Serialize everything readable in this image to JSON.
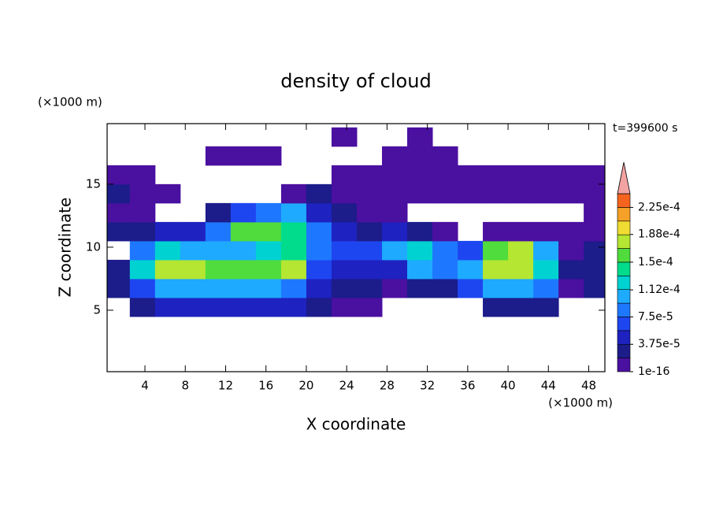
{
  "chart_data": {
    "type": "contour",
    "title": "density of cloud",
    "xlabel": "X coordinate",
    "ylabel": "Z coordinate",
    "x_unit": "(×1000 m)",
    "y_unit": "(×1000 m)",
    "annotation": "t=399600 s",
    "xlim": [
      0.25,
      49.6
    ],
    "ylim": [
      0.125,
      19.8
    ],
    "xticks": [
      4,
      8,
      12,
      16,
      20,
      24,
      28,
      32,
      36,
      40,
      44,
      48
    ],
    "yticks": [
      5,
      10,
      15
    ],
    "x": [
      1.25,
      3.75,
      6.25,
      8.75,
      11.25,
      13.75,
      16.25,
      18.75,
      21.25,
      23.75,
      26.25,
      28.75,
      31.25,
      33.75,
      36.25,
      38.75,
      41.25,
      43.75,
      46.25,
      48.75
    ],
    "y": [
      5.25,
      6.75,
      8.25,
      9.75,
      11.25,
      12.75,
      14.25,
      15.75,
      17.25,
      18.75
    ],
    "z": [
      [
        null,
        3e-05,
        5e-05,
        5e-05,
        5e-05,
        5e-05,
        5e-05,
        4e-05,
        2e-05,
        1e-05,
        1e-05,
        null,
        null,
        null,
        null,
        3e-05,
        3e-05,
        2e-05,
        null,
        null
      ],
      [
        2e-05,
        6e-05,
        0.00011,
        0.00011,
        0.0001,
        0.0001,
        0.0001,
        9e-05,
        5e-05,
        3e-05,
        2e-05,
        1e-05,
        2e-05,
        2e-05,
        6e-05,
        0.00011,
        0.00011,
        8e-05,
        1e-05,
        2e-05
      ],
      [
        3e-05,
        0.00013,
        0.00017,
        0.000175,
        0.00016,
        0.00015,
        0.00016,
        0.00017,
        7e-05,
        5e-05,
        4e-05,
        5e-05,
        0.00011,
        9e-05,
        0.00011,
        0.00017,
        0.00017,
        0.00012,
        2e-05,
        3e-05
      ],
      [
        null,
        8e-05,
        0.00012,
        0.00011,
        0.0001,
        0.00011,
        0.00013,
        0.00014,
        9e-05,
        7e-05,
        6e-05,
        0.0001,
        0.00013,
        8e-05,
        6e-05,
        0.00016,
        0.00017,
        0.00011,
        1e-05,
        2e-05
      ],
      [
        2e-05,
        3e-05,
        4e-05,
        5e-05,
        8e-05,
        0.00015,
        0.00016,
        0.00014,
        8e-05,
        5e-05,
        2e-05,
        5e-05,
        3e-05,
        1e-05,
        null,
        1e-05,
        1e-05,
        1e-05,
        1e-05,
        1e-05
      ],
      [
        1e-05,
        1e-05,
        null,
        null,
        2e-05,
        6e-05,
        9e-05,
        0.0001,
        5e-05,
        3e-05,
        1e-05,
        1e-05,
        null,
        null,
        null,
        null,
        null,
        null,
        null,
        1e-05
      ],
      [
        2e-05,
        1e-05,
        1e-05,
        null,
        null,
        null,
        null,
        1e-05,
        2e-05,
        1e-05,
        1e-05,
        1e-05,
        1e-05,
        1e-05,
        1e-05,
        1e-05,
        1e-05,
        1e-05,
        1e-05,
        1e-05
      ],
      [
        1e-05,
        1e-05,
        null,
        null,
        null,
        null,
        null,
        null,
        null,
        1e-05,
        1e-05,
        1e-05,
        1e-05,
        1e-05,
        1e-05,
        1e-05,
        1e-05,
        1e-05,
        1e-05,
        1e-05
      ],
      [
        null,
        null,
        null,
        null,
        1e-05,
        1e-05,
        1e-05,
        null,
        null,
        null,
        null,
        1e-05,
        1e-05,
        1e-05,
        null,
        null,
        null,
        null,
        null,
        null
      ],
      [
        null,
        null,
        null,
        null,
        null,
        null,
        null,
        null,
        null,
        1e-05,
        null,
        null,
        1e-05,
        null,
        null,
        null,
        null,
        null,
        null,
        null
      ]
    ],
    "colorbar": {
      "levels": [
        1e-16,
        1.875e-05,
        3.75e-05,
        5.625e-05,
        7.5e-05,
        9.375e-05,
        0.0001125,
        0.00013125,
        0.00015,
        0.00016875,
        0.0001875,
        0.00020625,
        0.000225,
        0.00024375
      ],
      "colors": [
        "#4a10a0",
        "#1c1c8a",
        "#1e22c0",
        "#1e46f0",
        "#1e78ff",
        "#1eaaff",
        "#00d2d2",
        "#00dc8c",
        "#50dc3c",
        "#b4e632",
        "#f0dc32",
        "#f5a028",
        "#f5641e"
      ],
      "extend_color": "#f4a3a3",
      "ticks": [
        {
          "value": 1e-16,
          "label": "1e-16"
        },
        {
          "value": 3.75e-05,
          "label": "3.75e-5"
        },
        {
          "value": 7.5e-05,
          "label": "7.5e-5"
        },
        {
          "value": 0.000112,
          "label": "1.12e-4"
        },
        {
          "value": 0.00015,
          "label": "1.5e-4"
        },
        {
          "value": 0.000188,
          "label": "1.88e-4"
        },
        {
          "value": 0.000225,
          "label": "2.25e-4"
        }
      ]
    }
  }
}
